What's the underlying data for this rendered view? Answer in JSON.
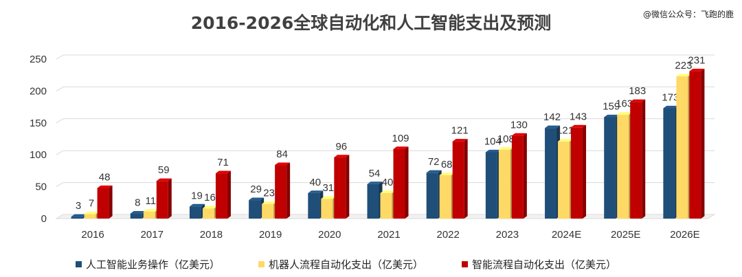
{
  "header": {
    "title": "2016-2026全球自动化和人工智能支出及预测",
    "watermark": "@微信公众号：飞跑的鹿"
  },
  "colors": {
    "series": [
      "#1F4E79",
      "#FFD966",
      "#C00000"
    ]
  },
  "legend": [
    "人工智能业务操作（亿美元）",
    "机器人流程自动化支出（亿美元）",
    "智能流程自动化支出（亿美元）"
  ],
  "chart_data": {
    "type": "bar",
    "title": "2016-2026全球自动化和人工智能支出及预测",
    "categories": [
      "2016",
      "2017",
      "2018",
      "2019",
      "2020",
      "2021",
      "2022",
      "2023",
      "2024E",
      "2025E",
      "2026E"
    ],
    "series": [
      {
        "name": "人工智能业务操作（亿美元）",
        "values": [
          3,
          8,
          19,
          29,
          40,
          54,
          72,
          104,
          142,
          159,
          173
        ]
      },
      {
        "name": "机器人流程自动化支出（亿美元）",
        "values": [
          7,
          11,
          16,
          23,
          31,
          40,
          68,
          108,
          121,
          163,
          223
        ]
      },
      {
        "name": "智能流程自动化支出（亿美元）",
        "values": [
          48,
          59,
          71,
          84,
          96,
          109,
          121,
          130,
          143,
          183,
          231
        ]
      }
    ],
    "ylim": [
      0,
      250
    ],
    "yticks": [
      0,
      50,
      100,
      150,
      200,
      250
    ],
    "grid": true,
    "legend_position": "bottom",
    "style": "3d-clustered-column"
  }
}
